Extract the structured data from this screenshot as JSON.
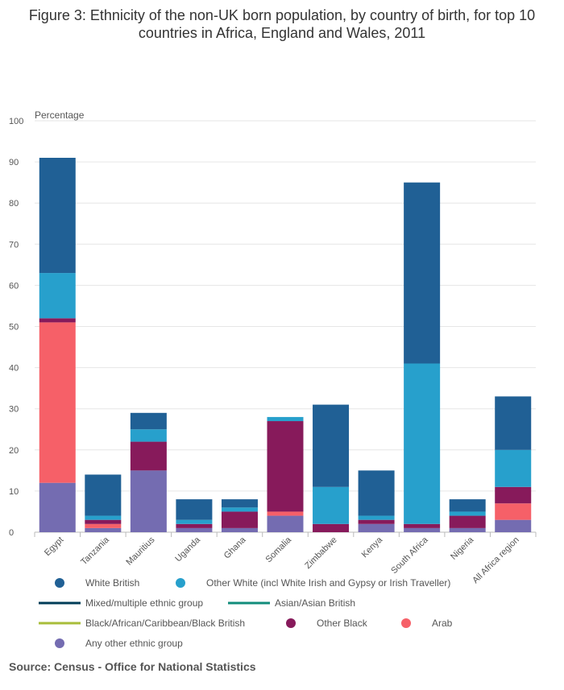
{
  "title": "Figure 3: Ethnicity of the non-UK born population, by country of birth, for top 10 countries in Africa, England and Wales, 2011",
  "source": "Source: Census - Office for National Statistics",
  "colors": {
    "white_british": "#206095",
    "other_white": "#27a0cc",
    "mixed": "#003c57",
    "asian": "#118c7b",
    "black_african": "#a8bd3a",
    "other_black": "#871a5b",
    "arab": "#f66068",
    "any_other": "#746cb1"
  },
  "chart_data": {
    "type": "bar",
    "stacked": true,
    "ylabel": "Percentage",
    "ylim": [
      0,
      100
    ],
    "yticks": [
      0,
      10,
      20,
      30,
      40,
      50,
      60,
      70,
      80,
      90,
      100
    ],
    "grid": true,
    "legend_position": "bottom",
    "categories": [
      "Egypt",
      "Tanzania",
      "Mauritius",
      "Uganda",
      "Ghana",
      "Somalia",
      "Zimbabwe",
      "Kenya",
      "South Africa",
      "Nigeria",
      "All Africa region"
    ],
    "series": [
      {
        "name": "White British",
        "key": "white_british",
        "marker": "dot",
        "values": [
          28,
          10,
          4,
          5,
          2,
          0,
          20,
          11,
          44,
          3,
          13
        ]
      },
      {
        "name": "Other White (incl White Irish and Gypsy or Irish Traveller)",
        "key": "other_white",
        "marker": "dot",
        "values": [
          11,
          1,
          3,
          1,
          1,
          1,
          9,
          1,
          39,
          1,
          9
        ]
      },
      {
        "name": "Mixed/multiple ethnic group",
        "key": "mixed",
        "marker": "line",
        "values": [
          0,
          0,
          0,
          0,
          0,
          0,
          0,
          0,
          0,
          0,
          0
        ]
      },
      {
        "name": "Asian/Asian British",
        "key": "asian",
        "marker": "line",
        "values": [
          0,
          0,
          0,
          0,
          0,
          0,
          0,
          0,
          0,
          0,
          0
        ]
      },
      {
        "name": "Black/African/Caribbean/Black British",
        "key": "black_african",
        "marker": "line",
        "values": [
          0,
          0,
          0,
          0,
          0,
          0,
          0,
          0,
          0,
          0,
          0
        ]
      },
      {
        "name": "Other Black",
        "key": "other_black",
        "marker": "dot",
        "values": [
          1,
          1,
          7,
          1,
          4,
          22,
          2,
          1,
          1,
          3,
          4
        ]
      },
      {
        "name": "Arab",
        "key": "arab",
        "marker": "dot",
        "values": [
          39,
          1,
          0,
          0,
          0,
          1,
          0,
          0,
          0,
          0,
          4
        ]
      },
      {
        "name": "Any other ethnic group",
        "key": "any_other",
        "marker": "dot",
        "values": [
          12,
          1,
          15,
          1,
          1,
          4,
          0,
          2,
          1,
          1,
          3
        ]
      }
    ]
  }
}
